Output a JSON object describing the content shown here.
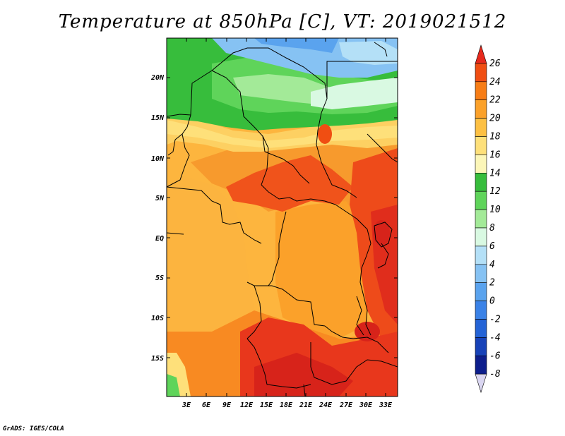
{
  "title": "Temperature at 850hPa [C], VT: 2019021512",
  "credit": "GrADS: IGES/COLA",
  "map": {
    "variable": "Temperature at 850hPa",
    "units": "C",
    "valid_time": "2019021512",
    "lat_labels": [
      "20N",
      "15N",
      "10N",
      "5N",
      "EQ",
      "5S",
      "10S",
      "15S"
    ],
    "lon_labels": [
      "3E",
      "6E",
      "9E",
      "12E",
      "15E",
      "18E",
      "21E",
      "24E",
      "27E",
      "30E",
      "33E"
    ]
  },
  "colorbar": {
    "labels": [
      "26",
      "24",
      "22",
      "20",
      "18",
      "16",
      "14",
      "12",
      "10",
      "8",
      "6",
      "4",
      "2",
      "0",
      "-2",
      "-4",
      "-6",
      "-8"
    ],
    "colors": [
      "#e6291d",
      "#f04e12",
      "#f77d16",
      "#fba12a",
      "#fdc043",
      "#fee07a",
      "#fcf6b8",
      "#37bd3c",
      "#5fd45a",
      "#a3ea98",
      "#d9f9e2",
      "#b4e0f7",
      "#86c2f3",
      "#5aa3ee",
      "#3a82e7",
      "#2463d6",
      "#1742b8",
      "#0d1e8c",
      "#dad6f1"
    ]
  }
}
